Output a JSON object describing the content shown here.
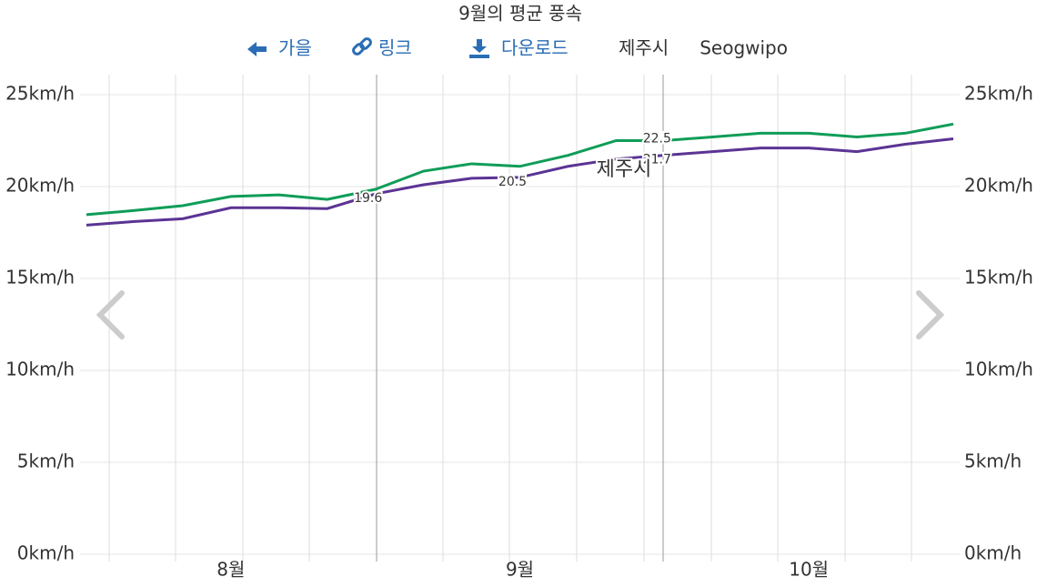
{
  "chart_data": {
    "type": "line",
    "title": "9월의 평균 풍속",
    "toolbar": {
      "back": "가을",
      "link": "링크",
      "download": "다운로드"
    },
    "categories": [
      null,
      null,
      null,
      "8월",
      null,
      null,
      null,
      null,
      null,
      "9월",
      null,
      null,
      null,
      null,
      null,
      "10월",
      null,
      null,
      null
    ],
    "selected_category_index": 9,
    "series": [
      {
        "name": "제주시",
        "color": "#5b3494",
        "values": [
          17.9,
          18.1,
          18.25,
          18.85,
          18.85,
          18.8,
          19.6,
          20.1,
          20.45,
          20.5,
          21.1,
          21.5,
          21.7,
          21.9,
          22.1,
          22.1,
          21.9,
          22.3,
          22.6
        ],
        "value_labels": [
          null,
          null,
          null,
          null,
          null,
          null,
          "19.6",
          null,
          null,
          "20.5",
          null,
          null,
          "21.7",
          null,
          null,
          null,
          null,
          null,
          null
        ]
      },
      {
        "name": "Seogwipo",
        "color": "#0f9d58",
        "values": [
          18.47,
          18.7,
          18.96,
          19.46,
          19.55,
          19.3,
          19.85,
          20.84,
          21.24,
          21.1,
          21.7,
          22.5,
          22.5,
          22.7,
          22.9,
          22.9,
          22.7,
          22.9,
          23.4
        ],
        "value_labels": [
          null,
          null,
          null,
          null,
          null,
          null,
          null,
          null,
          null,
          null,
          null,
          null,
          "22.5",
          null,
          null,
          null,
          null,
          null,
          null
        ]
      }
    ],
    "ylim": [
      0,
      25
    ],
    "yticks": [
      {
        "value": 0,
        "label": "0km/h"
      },
      {
        "value": 5,
        "label": "5km/h"
      },
      {
        "value": 10,
        "label": "10km/h"
      },
      {
        "value": 15,
        "label": "15km/h"
      },
      {
        "value": 20,
        "label": "20km/h"
      },
      {
        "value": 25,
        "label": "25km/h"
      }
    ],
    "grid": true
  }
}
